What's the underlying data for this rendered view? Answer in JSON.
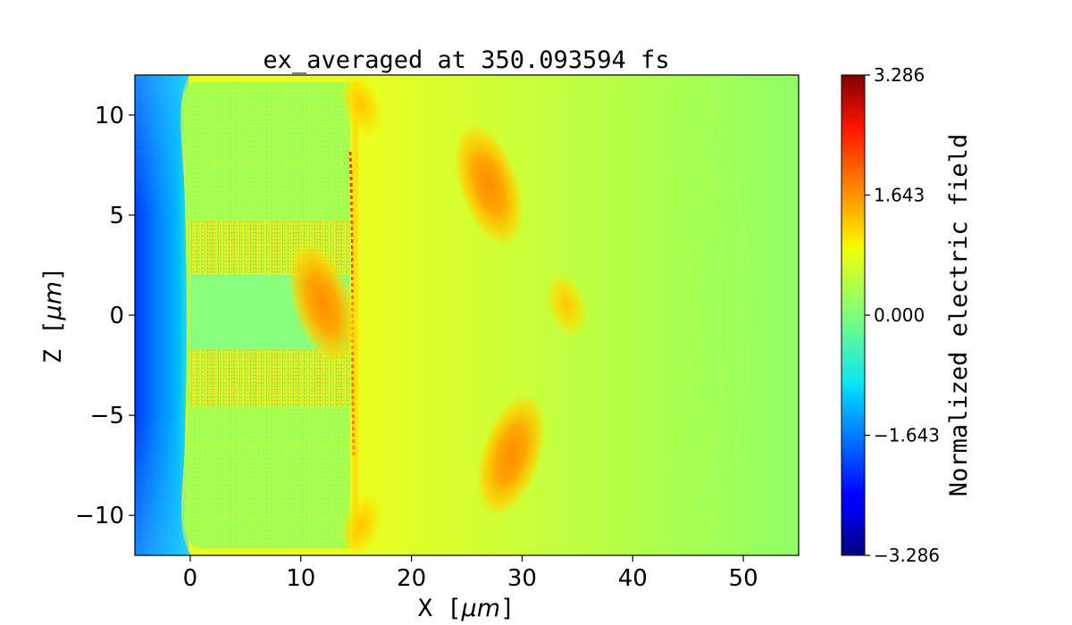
{
  "chart_data": {
    "type": "heatmap",
    "title": "ex_averaged at 350.093594 fs",
    "xlabel": "X [",
    "xlabel_unit": "μm",
    "xlabel_close": "]",
    "ylabel": "Z [",
    "ylabel_unit": "μm",
    "ylabel_close": "]",
    "xlim": [
      -5,
      55
    ],
    "ylim": [
      -12,
      12
    ],
    "x_ticks": [
      0,
      10,
      20,
      30,
      40,
      50
    ],
    "x_tick_labels": [
      "0",
      "10",
      "20",
      "30",
      "40",
      "50"
    ],
    "y_ticks": [
      10,
      5,
      0,
      -5,
      -10
    ],
    "y_tick_labels": [
      "10",
      "5",
      "0",
      "−5",
      "−10"
    ],
    "colormap": "jet",
    "colorbar": {
      "label": "Normalized electric field",
      "min": -3.286,
      "max": 3.286,
      "ticks": [
        3.286,
        1.643,
        0.0,
        -1.643,
        -3.286
      ],
      "tick_labels": [
        "3.286",
        "1.643",
        "0.000",
        "−1.643",
        "−3.286"
      ]
    },
    "features": [
      {
        "kind": "gradient",
        "x": [
          -5,
          0.5
        ],
        "value_from": -2.4,
        "value_to": -1.0
      },
      {
        "kind": "region",
        "x": [
          0.5,
          15
        ],
        "z": [
          -11.5,
          11.5
        ],
        "value": 0.25
      },
      {
        "kind": "stripe",
        "x": [
          0,
          15
        ],
        "z": [
          2.5,
          4.5
        ],
        "value": 0.5
      },
      {
        "kind": "stripe",
        "x": [
          0,
          15
        ],
        "z": [
          -4.5,
          -2.5
        ],
        "value": 0.5
      },
      {
        "kind": "region",
        "x": [
          15,
          55
        ],
        "z": [
          -12,
          12
        ],
        "value": 0.7
      },
      {
        "kind": "line",
        "x": 14.6,
        "z": [
          -7,
          8
        ],
        "value": 2.2
      },
      {
        "kind": "blob",
        "x": 27,
        "z": 6.5,
        "value": 1.9
      },
      {
        "kind": "blob",
        "x": 29,
        "z": -7,
        "value": 1.8
      },
      {
        "kind": "blob",
        "x": 34,
        "z": 0.5,
        "value": 1.7
      },
      {
        "kind": "blob",
        "x": 15.5,
        "z": 10.5,
        "value": 1.5
      },
      {
        "kind": "blob",
        "x": 15.5,
        "z": -10.5,
        "value": 1.5
      },
      {
        "kind": "blob",
        "x": 12,
        "z": 0.6,
        "value": 1.8
      }
    ]
  },
  "colors": {
    "axes": "#000000",
    "background": "#ffffff"
  }
}
